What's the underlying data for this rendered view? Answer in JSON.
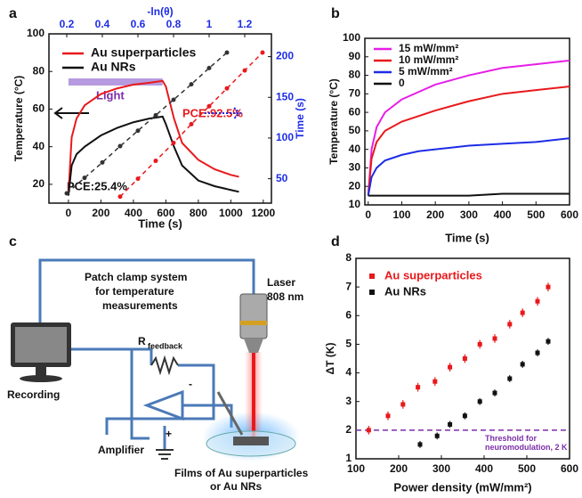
{
  "chart_data": [
    {
      "type": "line",
      "panel": "a",
      "xlabel": "Time (s)",
      "ylabel": "Temperature (°C)",
      "x2label": "-ln(θ)",
      "y2label": "Time (s)",
      "xlim": [
        -120,
        1250
      ],
      "xticks": [
        0,
        200,
        400,
        600,
        800,
        1000,
        1200
      ],
      "ylim": [
        10,
        100
      ],
      "yticks": [
        20,
        40,
        60,
        80,
        100
      ],
      "x2lim": [
        0.1,
        1.35
      ],
      "x2ticks": [
        0.2,
        0.4,
        0.6,
        0.8,
        1.0,
        1.2
      ],
      "y2lim": [
        20,
        228
      ],
      "y2ticks": [
        50,
        100,
        150,
        200
      ],
      "annotations": [
        "Light",
        "PCE:92.5%",
        "PCE:25.4%"
      ],
      "series": [
        {
          "name": "Au superparticles",
          "color": "#e8191c",
          "x": [
            0,
            20,
            50,
            100,
            200,
            300,
            400,
            500,
            580,
            600,
            650,
            700,
            800,
            900,
            1000,
            1050
          ],
          "values": [
            15,
            45,
            55,
            62,
            68,
            71,
            73,
            74,
            75,
            72,
            55,
            42,
            33,
            28,
            25,
            24
          ]
        },
        {
          "name": "Au NRs",
          "color": "#111111",
          "x": [
            0,
            20,
            50,
            100,
            200,
            300,
            400,
            500,
            580,
            600,
            650,
            700,
            800,
            900,
            1000,
            1050
          ],
          "values": [
            14,
            30,
            36,
            40,
            46,
            50,
            53,
            55,
            56,
            52,
            40,
            30,
            22,
            19,
            17,
            16
          ]
        },
        {
          "color": "#333333",
          "axis": "y2",
          "dash": true,
          "markers": true,
          "x": [
            0.2,
            0.3,
            0.4,
            0.5,
            0.6,
            0.7,
            0.8,
            0.9,
            1.0,
            1.1
          ],
          "values": [
            32,
            51,
            70,
            90,
            109,
            128,
            147,
            166,
            186,
            205
          ]
        },
        {
          "color": "#e8191c",
          "axis": "y2",
          "dash": true,
          "markers": true,
          "x": [
            0.5,
            0.6,
            0.7,
            0.8,
            0.9,
            1.0,
            1.1,
            1.2,
            1.3
          ],
          "values": [
            28,
            50,
            72,
            94,
            117,
            139,
            161,
            183,
            205
          ]
        }
      ]
    },
    {
      "type": "line",
      "panel": "b",
      "xlabel": "Time (s)",
      "ylabel": "Temperature (°C)",
      "xlim": [
        -10,
        600
      ],
      "xticks": [
        0,
        100,
        200,
        300,
        400,
        500,
        600
      ],
      "ylim": [
        10,
        100
      ],
      "yticks": [
        10,
        20,
        30,
        40,
        50,
        60,
        70,
        80,
        90,
        100
      ],
      "series": [
        {
          "name": "15 mW/mm²",
          "color": "#e61ee6",
          "x": [
            0,
            10,
            25,
            50,
            100,
            150,
            200,
            300,
            400,
            500,
            600
          ],
          "values": [
            15,
            40,
            52,
            60,
            67,
            71,
            75,
            80,
            84,
            86,
            88
          ]
        },
        {
          "name": "10 mW/mm²",
          "color": "#e8191c",
          "x": [
            0,
            10,
            25,
            50,
            100,
            150,
            200,
            300,
            400,
            500,
            600
          ],
          "values": [
            15,
            35,
            44,
            50,
            55,
            58,
            61,
            66,
            70,
            72,
            74
          ]
        },
        {
          "name": "5 mW/mm²",
          "color": "#1e2de6",
          "x": [
            0,
            10,
            25,
            50,
            100,
            150,
            200,
            300,
            400,
            500,
            600
          ],
          "values": [
            15,
            25,
            30,
            34,
            37,
            39,
            40,
            42,
            43,
            44,
            46
          ]
        },
        {
          "name": "0",
          "color": "#111111",
          "x": [
            0,
            10,
            25,
            50,
            100,
            150,
            200,
            300,
            400,
            500,
            600
          ],
          "values": [
            15,
            15,
            15,
            15,
            15,
            15,
            15,
            15,
            16,
            16,
            16
          ]
        }
      ]
    },
    {
      "type": "scatter",
      "panel": "d",
      "xlabel": "Power density (mW/mm²)",
      "ylabel": "ΔT (K)",
      "xlim": [
        100,
        600
      ],
      "xticks": [
        100,
        200,
        300,
        400,
        500,
        600
      ],
      "ylim": [
        1,
        8
      ],
      "yticks": [
        1,
        2,
        3,
        4,
        5,
        6,
        7,
        8
      ],
      "threshold": {
        "value": 2,
        "color": "#7b2fa8",
        "label": [
          "Threshold for",
          "neuromodulation, 2 K"
        ]
      },
      "series": [
        {
          "name": "Au superparticles",
          "color": "#e8191c",
          "x": [
            130,
            175,
            210,
            245,
            285,
            320,
            355,
            390,
            425,
            460,
            490,
            525,
            550
          ],
          "values": [
            2.0,
            2.5,
            2.9,
            3.5,
            3.7,
            4.2,
            4.5,
            5.0,
            5.2,
            5.7,
            6.1,
            6.5,
            7.0
          ],
          "errors": [
            0.15,
            0.15,
            0.15,
            0.15,
            0.15,
            0.15,
            0.15,
            0.15,
            0.15,
            0.15,
            0.15,
            0.15,
            0.15
          ]
        },
        {
          "name": "Au NRs",
          "color": "#111111",
          "x": [
            250,
            290,
            320,
            355,
            390,
            425,
            460,
            490,
            525,
            550
          ],
          "values": [
            1.5,
            1.8,
            2.2,
            2.5,
            3.0,
            3.3,
            3.8,
            4.3,
            4.7,
            5.1
          ],
          "errors": [
            0.12,
            0.12,
            0.12,
            0.12,
            0.12,
            0.12,
            0.12,
            0.12,
            0.12,
            0.12
          ]
        }
      ]
    }
  ],
  "diagram": {
    "panel": "c",
    "labels": {
      "patch1": "Patch clamp system",
      "patch2": "for temperature",
      "patch3": "measurements",
      "laser1": "Laser",
      "laser2": "808 nm",
      "r": "R",
      "rsub": "feedback",
      "recording": "Recording",
      "amplifier": "Amplifier",
      "minus": "-",
      "plus": "+",
      "films1": "Films of Au superparticles",
      "films2": "or Au NRs"
    }
  }
}
